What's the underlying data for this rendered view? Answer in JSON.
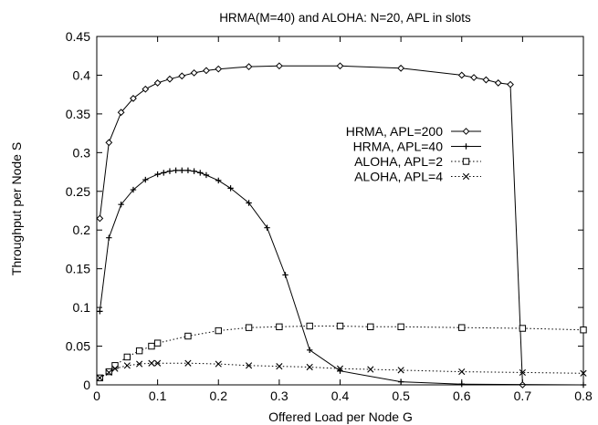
{
  "chart_data": {
    "type": "line",
    "title": "HRMA(M=40) and ALOHA: N=20, APL in slots",
    "xlabel": "Offered Load per Node G",
    "ylabel": "Throughput per Node S",
    "xlim": [
      0,
      0.8
    ],
    "ylim": [
      0,
      0.45
    ],
    "x_ticks": [
      0,
      0.1,
      0.2,
      0.3,
      0.4,
      0.5,
      0.6,
      0.7,
      0.8
    ],
    "x_tick_labels": [
      "0",
      "0.1",
      "0.2",
      "0.3",
      "0.4",
      "0.5",
      "0.6",
      "0.7",
      "0.8"
    ],
    "y_ticks": [
      0,
      0.05,
      0.1,
      0.15,
      0.2,
      0.25,
      0.3,
      0.35,
      0.4,
      0.45
    ],
    "y_tick_labels": [
      "0",
      "0.05",
      "0.1",
      "0.15",
      "0.2",
      "0.25",
      "0.3",
      "0.35",
      "0.4",
      "0.45"
    ],
    "grid": false,
    "legend_position": "top-right",
    "series": [
      {
        "name": "HRMA, APL=200",
        "marker": "diamond",
        "line_style": "solid",
        "color": "#000000",
        "x": [
          0.005,
          0.02,
          0.04,
          0.06,
          0.08,
          0.1,
          0.12,
          0.14,
          0.16,
          0.18,
          0.2,
          0.25,
          0.3,
          0.4,
          0.5,
          0.6,
          0.62,
          0.64,
          0.66,
          0.68,
          0.7
        ],
        "y": [
          0.215,
          0.313,
          0.352,
          0.37,
          0.382,
          0.39,
          0.395,
          0.399,
          0.403,
          0.406,
          0.408,
          0.411,
          0.412,
          0.412,
          0.409,
          0.4,
          0.397,
          0.394,
          0.39,
          0.388,
          0.0
        ]
      },
      {
        "name": "HRMA, APL=40",
        "marker": "plus",
        "line_style": "solid",
        "color": "#000000",
        "x": [
          0.005,
          0.02,
          0.04,
          0.06,
          0.08,
          0.1,
          0.11,
          0.12,
          0.13,
          0.14,
          0.15,
          0.16,
          0.17,
          0.18,
          0.2,
          0.22,
          0.25,
          0.28,
          0.31,
          0.35,
          0.4,
          0.5,
          0.6,
          0.8
        ],
        "y": [
          0.095,
          0.19,
          0.233,
          0.252,
          0.265,
          0.272,
          0.274,
          0.276,
          0.277,
          0.277,
          0.277,
          0.276,
          0.274,
          0.271,
          0.264,
          0.254,
          0.235,
          0.203,
          0.142,
          0.045,
          0.018,
          0.004,
          0.001,
          0.0
        ]
      },
      {
        "name": "ALOHA, APL=2",
        "marker": "square",
        "line_style": "dotted",
        "color": "#000000",
        "x": [
          0.005,
          0.02,
          0.03,
          0.05,
          0.07,
          0.09,
          0.1,
          0.15,
          0.2,
          0.25,
          0.3,
          0.35,
          0.4,
          0.45,
          0.5,
          0.6,
          0.7,
          0.8
        ],
        "y": [
          0.009,
          0.017,
          0.025,
          0.036,
          0.044,
          0.05,
          0.054,
          0.063,
          0.07,
          0.074,
          0.075,
          0.076,
          0.076,
          0.075,
          0.075,
          0.074,
          0.073,
          0.071
        ]
      },
      {
        "name": "ALOHA, APL=4",
        "marker": "x",
        "line_style": "dotted",
        "color": "#000000",
        "x": [
          0.005,
          0.02,
          0.03,
          0.05,
          0.07,
          0.09,
          0.1,
          0.15,
          0.2,
          0.25,
          0.3,
          0.35,
          0.4,
          0.45,
          0.5,
          0.6,
          0.7,
          0.8
        ],
        "y": [
          0.009,
          0.016,
          0.021,
          0.025,
          0.027,
          0.028,
          0.028,
          0.028,
          0.027,
          0.025,
          0.024,
          0.023,
          0.021,
          0.02,
          0.019,
          0.017,
          0.016,
          0.015
        ]
      }
    ]
  }
}
